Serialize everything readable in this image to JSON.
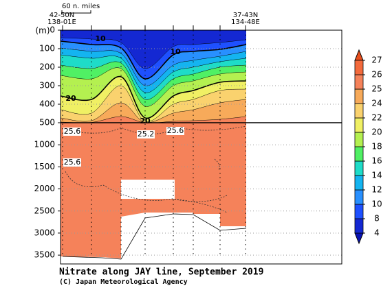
{
  "chart_data": {
    "type": "contour",
    "title": "Nitrate along JAY line, September 2019",
    "credit": "(C) Japan Meteorological Agency",
    "y_unit": "(m)",
    "scale_label": "60 n. miles",
    "station_start": [
      "42-50N",
      "138-01E"
    ],
    "station_end": [
      "37-43N",
      "134-48E"
    ],
    "panels": [
      {
        "ylim": [
          0,
          500
        ],
        "yticks": [
          0,
          100,
          200,
          300,
          400,
          500
        ]
      },
      {
        "ylim": [
          500,
          3700
        ],
        "yticks": [
          1000,
          1500,
          2000,
          2500,
          3000,
          3500
        ]
      }
    ],
    "grid": true,
    "colorbar": {
      "ticks": [
        4,
        8,
        10,
        12,
        14,
        16,
        18,
        20,
        22,
        24,
        25,
        26,
        27
      ],
      "colors": [
        "#0a14b4",
        "#1428d2",
        "#1e50ff",
        "#2890ff",
        "#14b4f0",
        "#1edcc8",
        "#50f064",
        "#b4f050",
        "#f0f064",
        "#fad26e",
        "#f7aa5a",
        "#f5825a",
        "#f36a3c",
        "#e8501e"
      ]
    },
    "contour_labels": [
      10,
      10,
      20,
      20,
      25.6,
      25.2,
      25.6,
      25.6
    ]
  }
}
